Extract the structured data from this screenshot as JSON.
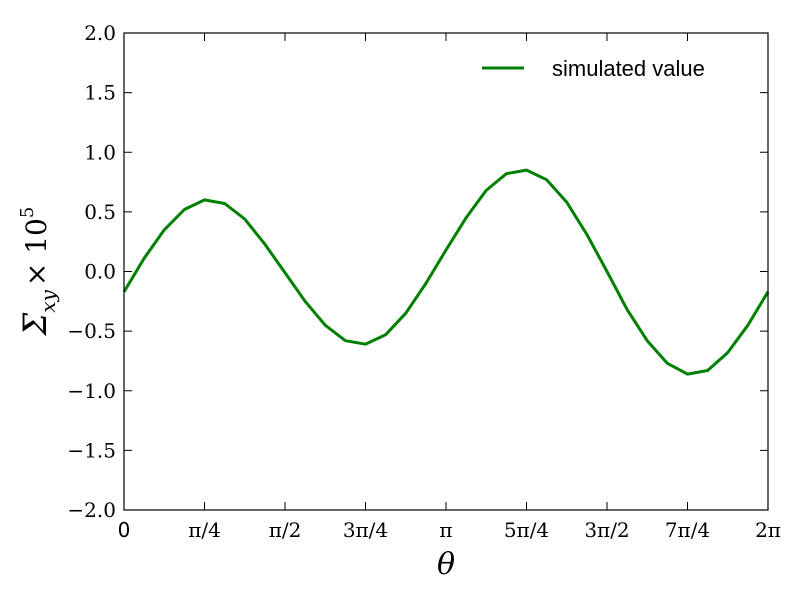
{
  "chart_data": {
    "type": "line",
    "xlabel": "θ",
    "ylabel_main": "Σ",
    "ylabel_sub": "xy",
    "ylabel_times": "× 10",
    "ylabel_exp": "5",
    "xlim": [
      0,
      6.283185
    ],
    "ylim": [
      -2.0,
      2.0
    ],
    "grid": false,
    "legend_position": "top-right",
    "xticks": [
      {
        "value": 0,
        "label": "0"
      },
      {
        "value": 0.785398,
        "label": "π/4"
      },
      {
        "value": 1.570796,
        "label": "π/2"
      },
      {
        "value": 2.356194,
        "label": "3π/4"
      },
      {
        "value": 3.141593,
        "label": "π"
      },
      {
        "value": 3.926991,
        "label": "5π/4"
      },
      {
        "value": 4.712389,
        "label": "3π/2"
      },
      {
        "value": 5.497787,
        "label": "7π/4"
      },
      {
        "value": 6.283185,
        "label": "2π"
      }
    ],
    "yticks": [
      {
        "value": 2.0,
        "label": "2.0"
      },
      {
        "value": 1.5,
        "label": "1.5"
      },
      {
        "value": 1.0,
        "label": "1.0"
      },
      {
        "value": 0.5,
        "label": "0.5"
      },
      {
        "value": 0.0,
        "label": "0.0"
      },
      {
        "value": -0.5,
        "label": "−0.5"
      },
      {
        "value": -1.0,
        "label": "−1.0"
      },
      {
        "value": -1.5,
        "label": "−1.5"
      },
      {
        "value": -2.0,
        "label": "−2.0"
      }
    ],
    "series": [
      {
        "name": "simulated value",
        "color": "#008000",
        "x": [
          0.0,
          0.196,
          0.393,
          0.589,
          0.785,
          0.982,
          1.178,
          1.374,
          1.571,
          1.767,
          1.963,
          2.16,
          2.356,
          2.553,
          2.749,
          2.945,
          3.142,
          3.338,
          3.534,
          3.731,
          3.927,
          4.123,
          4.32,
          4.516,
          4.712,
          4.909,
          5.105,
          5.301,
          5.498,
          5.694,
          5.89,
          6.087,
          6.283
        ],
        "y": [
          -0.17,
          0.11,
          0.35,
          0.52,
          0.6,
          0.57,
          0.44,
          0.23,
          -0.01,
          -0.25,
          -0.45,
          -0.58,
          -0.61,
          -0.53,
          -0.35,
          -0.1,
          0.18,
          0.45,
          0.68,
          0.82,
          0.85,
          0.77,
          0.58,
          0.31,
          0.0,
          -0.32,
          -0.58,
          -0.77,
          -0.86,
          -0.83,
          -0.68,
          -0.45,
          -0.17
        ]
      }
    ]
  }
}
